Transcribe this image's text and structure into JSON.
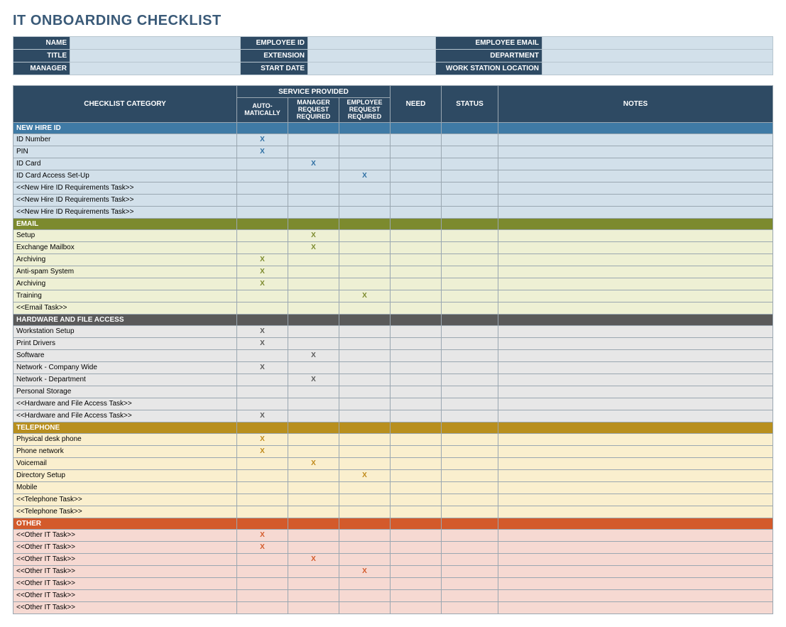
{
  "title": "IT ONBOARDING CHECKLIST",
  "colors": {
    "header_bg": "#2e4a63",
    "header_fg": "#ffffff",
    "info_value_bg": "#d2e0ea",
    "grid_border": "#9aa7b1"
  },
  "info_fields": [
    [
      {
        "label": "NAME",
        "value": ""
      },
      {
        "label": "EMPLOYEE ID",
        "value": ""
      },
      {
        "label": "EMPLOYEE EMAIL",
        "value": ""
      }
    ],
    [
      {
        "label": "TITLE",
        "value": ""
      },
      {
        "label": "EXTENSION",
        "value": ""
      },
      {
        "label": "DEPARTMENT",
        "value": ""
      }
    ],
    [
      {
        "label": "MANAGER",
        "value": ""
      },
      {
        "label": "START DATE",
        "value": ""
      },
      {
        "label": "WORK STATION LOCATION",
        "value": ""
      }
    ]
  ],
  "checklist_headers": {
    "category": "CHECKLIST CATEGORY",
    "service_provided": "SERVICE PROVIDED",
    "sp_auto": "AUTO-\nMATICALLY",
    "sp_mgr": "MANAGER\nREQUEST\nREQUIRED",
    "sp_emp": "EMPLOYEE\nREQUEST\nREQUIRED",
    "need": "NEED",
    "status": "STATUS",
    "notes": "NOTES"
  },
  "mark_glyph": "X",
  "sections": [
    {
      "name": "NEW HIRE ID",
      "section_bg": "#3f7aa5",
      "row_bg": "#d2e0ea",
      "mark_color": "#2e6fa3",
      "rows": [
        {
          "cat": "ID Number",
          "auto": true,
          "mgr": false,
          "emp": false
        },
        {
          "cat": "PIN",
          "auto": true,
          "mgr": false,
          "emp": false
        },
        {
          "cat": "ID Card",
          "auto": false,
          "mgr": true,
          "emp": false
        },
        {
          "cat": "ID Card Access Set-Up",
          "auto": false,
          "mgr": false,
          "emp": true
        },
        {
          "cat": "<<New Hire ID Requirements Task>>",
          "auto": false,
          "mgr": false,
          "emp": false
        },
        {
          "cat": "<<New Hire ID Requirements Task>>",
          "auto": false,
          "mgr": false,
          "emp": false
        },
        {
          "cat": "<<New Hire ID Requirements Task>>",
          "auto": false,
          "mgr": false,
          "emp": false
        }
      ]
    },
    {
      "name": "EMAIL",
      "section_bg": "#7c8a2e",
      "row_bg": "#eef0d4",
      "mark_color": "#7c8a2e",
      "rows": [
        {
          "cat": "Setup",
          "auto": false,
          "mgr": true,
          "emp": false
        },
        {
          "cat": "Exchange Mailbox",
          "auto": false,
          "mgr": true,
          "emp": false
        },
        {
          "cat": "Archiving",
          "auto": true,
          "mgr": false,
          "emp": false
        },
        {
          "cat": "Anti-spam System",
          "auto": true,
          "mgr": false,
          "emp": false
        },
        {
          "cat": "Archiving",
          "auto": true,
          "mgr": false,
          "emp": false
        },
        {
          "cat": "Training",
          "auto": false,
          "mgr": false,
          "emp": true
        },
        {
          "cat": "<<Email Task>>",
          "auto": false,
          "mgr": false,
          "emp": false
        }
      ]
    },
    {
      "name": "HARDWARE AND FILE ACCESS",
      "section_bg": "#5a5a5a",
      "row_bg": "#e7e7e7",
      "mark_color": "#5a5a5a",
      "rows": [
        {
          "cat": "Workstation Setup",
          "auto": true,
          "mgr": false,
          "emp": false
        },
        {
          "cat": "Print Drivers",
          "auto": true,
          "mgr": false,
          "emp": false
        },
        {
          "cat": "Software",
          "auto": false,
          "mgr": true,
          "emp": false
        },
        {
          "cat": "Network - Company Wide",
          "auto": true,
          "mgr": false,
          "emp": false
        },
        {
          "cat": "Network - Department",
          "auto": false,
          "mgr": true,
          "emp": false
        },
        {
          "cat": "Personal Storage",
          "auto": false,
          "mgr": false,
          "emp": false
        },
        {
          "cat": "<<Hardware and File Access Task>>",
          "auto": false,
          "mgr": false,
          "emp": false
        },
        {
          "cat": "<<Hardware and File Access Task>>",
          "auto": true,
          "mgr": false,
          "emp": false
        }
      ]
    },
    {
      "name": "TELEPHONE",
      "section_bg": "#b88f1e",
      "row_bg": "#faefce",
      "mark_color": "#c08a1a",
      "rows": [
        {
          "cat": "Physical desk phone",
          "auto": true,
          "mgr": false,
          "emp": false
        },
        {
          "cat": "Phone network",
          "auto": true,
          "mgr": false,
          "emp": false
        },
        {
          "cat": "Voicemail",
          "auto": false,
          "mgr": true,
          "emp": false
        },
        {
          "cat": "Directory Setup",
          "auto": false,
          "mgr": false,
          "emp": true
        },
        {
          "cat": "Mobile",
          "auto": false,
          "mgr": false,
          "emp": false
        },
        {
          "cat": "<<Telephone Task>>",
          "auto": false,
          "mgr": false,
          "emp": false
        },
        {
          "cat": "<<Telephone Task>>",
          "auto": false,
          "mgr": false,
          "emp": false
        }
      ]
    },
    {
      "name": "OTHER",
      "section_bg": "#d35a2b",
      "row_bg": "#f6d9d2",
      "mark_color": "#d35a2b",
      "rows": [
        {
          "cat": "<<Other IT Task>>",
          "auto": true,
          "mgr": false,
          "emp": false
        },
        {
          "cat": "<<Other IT Task>>",
          "auto": true,
          "mgr": false,
          "emp": false
        },
        {
          "cat": "<<Other IT Task>>",
          "auto": false,
          "mgr": true,
          "emp": false
        },
        {
          "cat": "<<Other IT Task>>",
          "auto": false,
          "mgr": false,
          "emp": true
        },
        {
          "cat": "<<Other IT Task>>",
          "auto": false,
          "mgr": false,
          "emp": false
        },
        {
          "cat": "<<Other IT Task>>",
          "auto": false,
          "mgr": false,
          "emp": false
        },
        {
          "cat": "<<Other IT Task>>",
          "auto": false,
          "mgr": false,
          "emp": false
        }
      ]
    }
  ]
}
